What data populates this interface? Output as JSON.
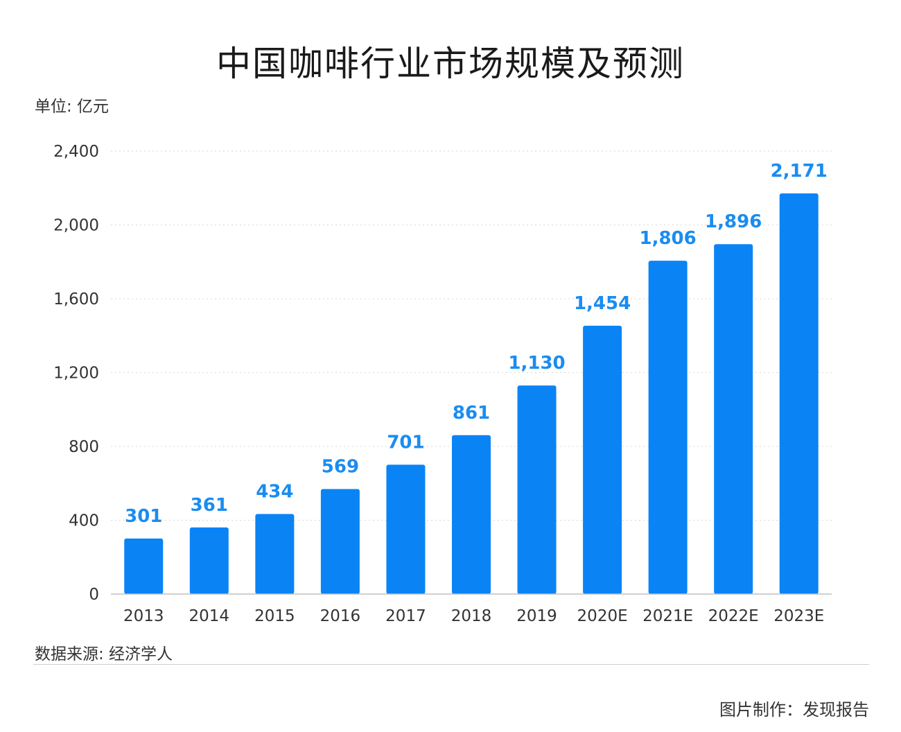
{
  "chart_data": {
    "type": "bar",
    "title": "中国咖啡行业市场规模及预测",
    "unit_label": "单位: 亿元",
    "categories": [
      "2013",
      "2014",
      "2015",
      "2016",
      "2017",
      "2018",
      "2019",
      "2020E",
      "2021E",
      "2022E",
      "2023E"
    ],
    "values": [
      301,
      361,
      434,
      569,
      701,
      861,
      1130,
      1454,
      1806,
      1896,
      2171
    ],
    "value_labels": [
      "301",
      "361",
      "434",
      "569",
      "701",
      "861",
      "1,130",
      "1,454",
      "1,806",
      "1,896",
      "2,171"
    ],
    "y_ticks": [
      0,
      400,
      800,
      1200,
      1600,
      2000,
      2400
    ],
    "y_tick_labels": [
      "0",
      "400",
      "800",
      "1,200",
      "1,600",
      "2,000",
      "2,400"
    ],
    "ylim": [
      0,
      2400
    ],
    "xlabel": "",
    "ylabel": "",
    "grid": true,
    "legend": "none",
    "bar_color": "#0a84f5",
    "label_color": "#1a8cf0"
  },
  "footer": {
    "source": "数据来源: 经济学人",
    "credit": "图片制作：发现报告"
  }
}
